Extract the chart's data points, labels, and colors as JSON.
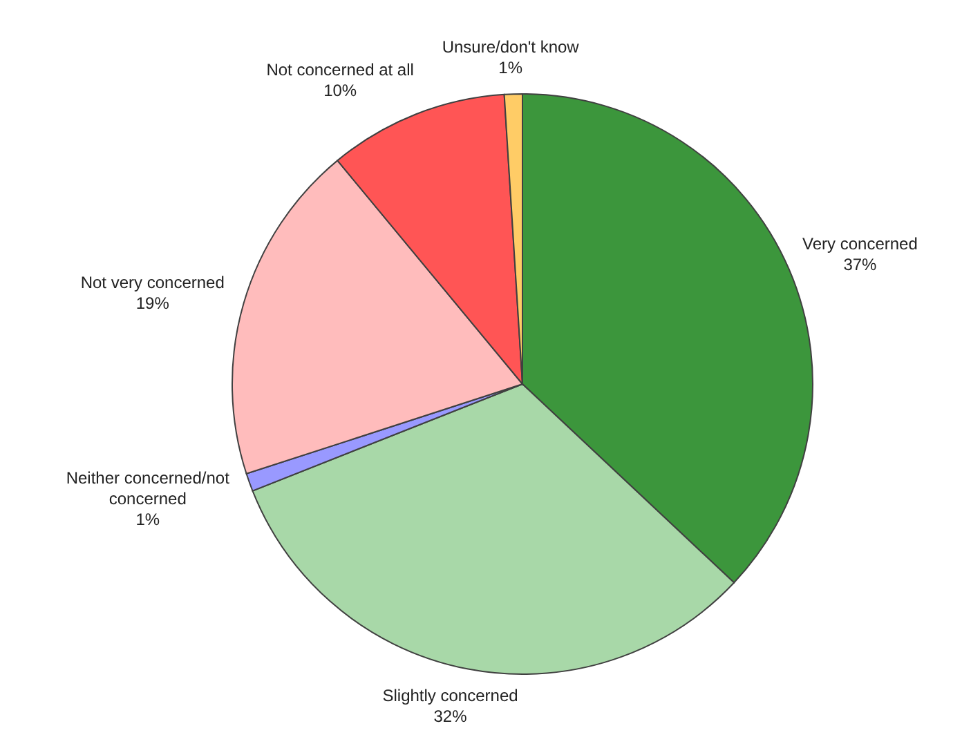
{
  "chart_data": {
    "type": "pie",
    "categories": [
      "Very concerned",
      "Slightly concerned",
      "Neither concerned/not concerned",
      "Not very concerned",
      "Not concerned at all",
      "Unsure/don't know"
    ],
    "values": [
      37,
      32,
      1,
      19,
      10,
      1
    ],
    "value_labels": [
      "37%",
      "32%",
      "1%",
      "19%",
      "10%",
      "1%"
    ],
    "colors": [
      "#3c963c",
      "#a8d8a8",
      "#9999ff",
      "#ffbcbc",
      "#ff5555",
      "#ffcc66"
    ]
  }
}
